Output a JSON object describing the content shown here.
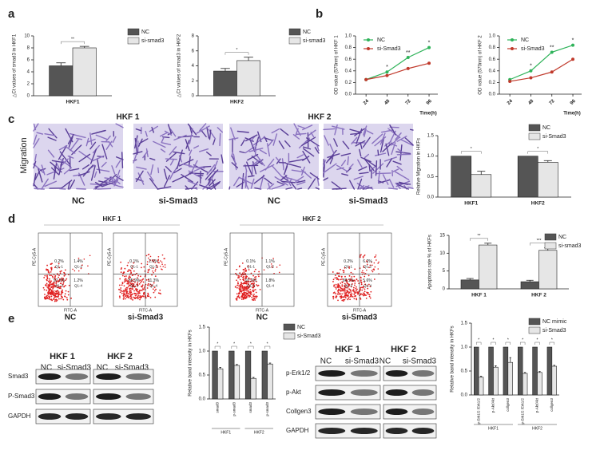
{
  "panels": [
    "a",
    "b",
    "c",
    "d",
    "e"
  ],
  "migration": {
    "groups": [
      "HKF 1",
      "HKF 2"
    ],
    "row_label": "Migration",
    "captions": [
      "NC",
      "si-Smad3",
      "NC",
      "si-Smad3"
    ]
  },
  "flow": {
    "groups": [
      "HKF 1",
      "HKF 2"
    ],
    "y_axis": "PE-Cy5-A",
    "x_axis": "FITC-A",
    "quadrant_names": [
      "Q1-1",
      "Q1-2",
      "Q1-3",
      "Q1-4"
    ],
    "plots": [
      {
        "caption": "NC",
        "quadrants": [
          "0.2%",
          "1.4%",
          "97.2%",
          "1.2%"
        ]
      },
      {
        "caption": "si-Smad3",
        "quadrants": [
          "0.1%",
          "2.6%",
          "85.9%",
          "11.3%"
        ]
      },
      {
        "caption": "NC",
        "quadrants": [
          "0.1%",
          "1.1%",
          "97.0%",
          "1.8%"
        ]
      },
      {
        "caption": "si-Smad3",
        "quadrants": [
          "0.2%",
          "6.2%",
          "86.1%",
          "5.6%"
        ]
      }
    ]
  },
  "blots": [
    {
      "groups": [
        "HKF 1",
        "HKF 2"
      ],
      "lanes": [
        "NC",
        "si-Smad3",
        "NC",
        "si-Smad3"
      ],
      "rows": [
        "Smad3",
        "P-Smad3",
        "GAPDH"
      ]
    },
    {
      "groups": [
        "HKF 1",
        "HKF 2"
      ],
      "lanes": [
        "NC",
        "si-Smad3",
        "NC",
        "si-Smad3"
      ],
      "rows": [
        "p-Erk1/2",
        "p-Akt",
        "Collgen3",
        "GAPDH"
      ]
    }
  ],
  "chart_data": [
    {
      "type": "bar",
      "ylabel": "△Ct values of smad3 in HKF1",
      "categories": [
        "HKF1"
      ],
      "series": [
        {
          "name": "NC",
          "color": "#555555",
          "values": [
            5.0
          ],
          "errors": [
            0.5
          ]
        },
        {
          "name": "si-smad3",
          "color": "#e6e6e6",
          "values": [
            8.0
          ],
          "errors": [
            0.25
          ]
        }
      ],
      "ylim": [
        0,
        10
      ],
      "yticks": [
        0,
        2,
        4,
        6,
        8,
        10
      ],
      "significance": [
        "**"
      ]
    },
    {
      "type": "bar",
      "ylabel": "△Ct values of smad3 in HKF2",
      "categories": [
        "HKF2"
      ],
      "series": [
        {
          "name": "NC",
          "color": "#555555",
          "values": [
            3.3
          ],
          "errors": [
            0.35
          ]
        },
        {
          "name": "si-smad3",
          "color": "#e6e6e6",
          "values": [
            4.7
          ],
          "errors": [
            0.45
          ]
        }
      ],
      "ylim": [
        0,
        8
      ],
      "yticks": [
        0,
        2,
        4,
        6,
        8
      ],
      "significance": [
        "*"
      ]
    },
    {
      "type": "line",
      "ylabel": "OD value (570nm) of HKF 1",
      "xlabel": "Time(h)",
      "x": [
        24,
        48,
        72,
        96
      ],
      "xlim": [
        12,
        106
      ],
      "xticks": [
        24,
        48,
        72,
        96
      ],
      "series": [
        {
          "name": "NC",
          "color": "#2fb35a",
          "values": [
            0.25,
            0.38,
            0.63,
            0.8
          ]
        },
        {
          "name": "si-Smad3",
          "color": "#c0392b",
          "values": [
            0.25,
            0.32,
            0.44,
            0.53
          ]
        }
      ],
      "ylim": [
        0,
        1
      ],
      "yticks": [
        {
          "value": 0,
          "label": "0.0"
        },
        {
          "value": 0.2,
          "label": "0.2"
        },
        {
          "value": 0.4,
          "label": "0.4"
        },
        {
          "value": 0.6,
          "label": "0.6"
        },
        {
          "value": 0.8,
          "label": "0.8"
        },
        {
          "value": 1,
          "label": "1.0"
        }
      ],
      "annotations": [
        null,
        "*",
        "**",
        "*"
      ]
    },
    {
      "type": "line",
      "ylabel": "OD value (570nm) of HKF 2",
      "xlabel": "Time(h)",
      "x": [
        24,
        48,
        72,
        96
      ],
      "xlim": [
        12,
        106
      ],
      "xticks": [
        24,
        48,
        72,
        96
      ],
      "series": [
        {
          "name": "NC",
          "color": "#2fb35a",
          "values": [
            0.25,
            0.4,
            0.72,
            0.84
          ]
        },
        {
          "name": "si-Smad3",
          "color": "#c0392b",
          "values": [
            0.22,
            0.28,
            0.38,
            0.6
          ]
        }
      ],
      "ylim": [
        0,
        1
      ],
      "yticks": [
        {
          "value": 0,
          "label": "0.0"
        },
        {
          "value": 0.2,
          "label": "0.2"
        },
        {
          "value": 0.4,
          "label": "0.4"
        },
        {
          "value": 0.6,
          "label": "0.6"
        },
        {
          "value": 0.8,
          "label": "0.8"
        },
        {
          "value": 1,
          "label": "1.0"
        }
      ],
      "annotations": [
        null,
        "*",
        "**",
        "*"
      ]
    },
    {
      "type": "bar",
      "ylabel": "Relative Migration in HKFs",
      "categories": [
        "HKF1",
        "HKF2"
      ],
      "series": [
        {
          "name": "NC",
          "color": "#555555",
          "values": [
            1.0,
            1.0
          ],
          "errors": [
            0,
            0
          ]
        },
        {
          "name": "si-Smad3",
          "color": "#e6e6e6",
          "values": [
            0.55,
            0.85
          ],
          "errors": [
            0.08,
            0.04
          ]
        }
      ],
      "ylim": [
        0,
        1.5
      ],
      "yticks": [
        {
          "value": 0,
          "label": "0.0"
        },
        {
          "value": 0.5,
          "label": "0.5"
        },
        {
          "value": 1,
          "label": "1.0"
        },
        {
          "value": 1.5,
          "label": "1.5"
        }
      ],
      "significance": [
        "*",
        "*"
      ]
    },
    {
      "type": "bar",
      "ylabel": "Apoptosis rate % of HKFs",
      "categories": [
        "HKF 1",
        "HKF 2"
      ],
      "series": [
        {
          "name": "NC",
          "color": "#555555",
          "values": [
            2.5,
            2.0
          ],
          "errors": [
            0.4,
            0.4
          ]
        },
        {
          "name": "si-smad3",
          "color": "#e6e6e6",
          "values": [
            12.3,
            10.8
          ],
          "errors": [
            0.5,
            0.7
          ]
        }
      ],
      "ylim": [
        0,
        15
      ],
      "yticks": [
        0,
        5,
        10,
        15
      ],
      "significance": [
        "**",
        "***"
      ]
    },
    {
      "type": "bar",
      "ylabel": "Relative band intensity in HKFs",
      "categories": [
        "smad3",
        "p-smad3",
        "smad3",
        "p-smad3"
      ],
      "group_labels": [
        "HKF1",
        "HKF2"
      ],
      "series": [
        {
          "name": "NC",
          "color": "#555555",
          "values": [
            1,
            1,
            1,
            1
          ],
          "errors": [
            0,
            0,
            0,
            0
          ]
        },
        {
          "name": "si-Smad3",
          "color": "#e6e6e6",
          "values": [
            0.63,
            0.7,
            0.43,
            0.73
          ],
          "errors": [
            0.03,
            0.02,
            0.02,
            0.02
          ]
        }
      ],
      "ylim": [
        0,
        1.5
      ],
      "yticks": [
        {
          "value": 0,
          "label": "0.0"
        },
        {
          "value": 0.5,
          "label": "0.5"
        },
        {
          "value": 1,
          "label": "1.0"
        },
        {
          "value": 1.5,
          "label": "1.5"
        }
      ],
      "significance": [
        "*",
        "*",
        "*",
        "*"
      ]
    },
    {
      "type": "bar",
      "ylabel": "Relative band intensity in HKFs",
      "categories": [
        "p-Erk1/2 /Erk1/2",
        "p-Akt/Akt",
        "collgen3",
        "p-Erk1/2 /Erk1/2",
        "p-Akt/Akt",
        "collgen3"
      ],
      "group_labels": [
        "HKF1",
        "HKF2"
      ],
      "series": [
        {
          "name": "NC mimic",
          "color": "#555555",
          "values": [
            1,
            1,
            1,
            1,
            1,
            1
          ],
          "errors": [
            0,
            0,
            0,
            0,
            0,
            0
          ]
        },
        {
          "name": "si-Smad3",
          "color": "#e6e6e6",
          "values": [
            0.37,
            0.58,
            0.68,
            0.45,
            0.47,
            0.6
          ],
          "errors": [
            0.02,
            0.03,
            0.1,
            0.02,
            0.02,
            0.02
          ]
        }
      ],
      "ylim": [
        0,
        1.5
      ],
      "yticks": [
        {
          "value": 0,
          "label": "0.0"
        },
        {
          "value": 0.5,
          "label": "0.5"
        },
        {
          "value": 1,
          "label": "1.0"
        },
        {
          "value": 1.5,
          "label": "1.5"
        }
      ],
      "significance": [
        "*",
        "*",
        "*",
        "*",
        "*",
        "*"
      ]
    }
  ]
}
